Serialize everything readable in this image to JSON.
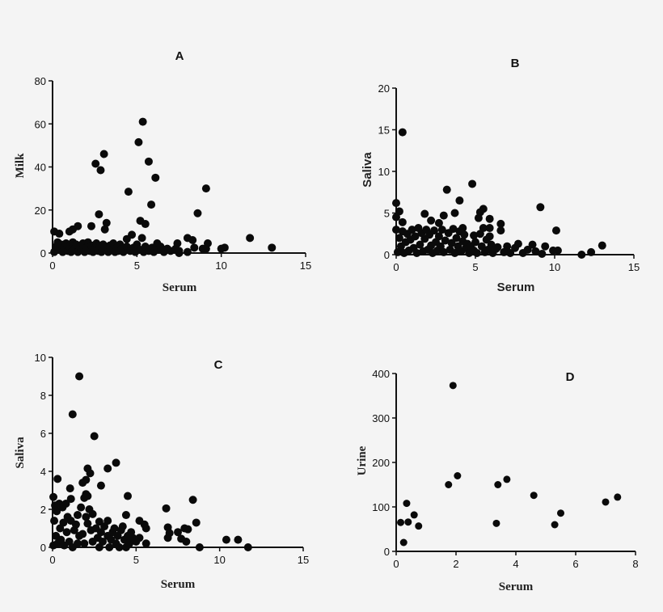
{
  "chart_data": [
    {
      "type": "scatter",
      "title": "A",
      "xlabel": "Serum",
      "ylabel": "Milk",
      "xlim": [
        0,
        15
      ],
      "ylim": [
        0,
        80
      ],
      "xticks": [
        0,
        5,
        10,
        15
      ],
      "yticks": [
        0,
        20,
        40,
        60,
        80
      ],
      "grid": false,
      "points": [
        [
          5.35,
          61
        ],
        [
          5.1,
          51.5
        ],
        [
          3.05,
          46
        ],
        [
          2.55,
          41.5
        ],
        [
          2.85,
          38.5
        ],
        [
          5.7,
          42.5
        ],
        [
          6.1,
          35
        ],
        [
          9.1,
          30
        ],
        [
          4.5,
          28.5
        ],
        [
          5.85,
          22.5
        ],
        [
          2.75,
          18
        ],
        [
          8.6,
          18.5
        ],
        [
          5.2,
          15
        ],
        [
          5.5,
          13.5
        ],
        [
          3.2,
          14
        ],
        [
          3.1,
          11
        ],
        [
          2.3,
          12.5
        ],
        [
          1.5,
          12.5
        ],
        [
          1.2,
          11
        ],
        [
          1.0,
          10
        ],
        [
          0.1,
          10
        ],
        [
          0.4,
          9
        ],
        [
          4.7,
          8.5
        ],
        [
          4.4,
          6.5
        ],
        [
          5.3,
          7
        ],
        [
          8.0,
          7
        ],
        [
          8.3,
          6
        ],
        [
          11.7,
          7
        ],
        [
          13.0,
          2.5
        ],
        [
          9.2,
          4.5
        ],
        [
          7.4,
          4.5
        ],
        [
          6.2,
          4.5
        ],
        [
          8.4,
          2.5
        ],
        [
          8.9,
          2
        ],
        [
          9.1,
          2
        ],
        [
          10.0,
          2
        ],
        [
          10.2,
          2.5
        ],
        [
          7.5,
          1
        ],
        [
          8.0,
          0.5
        ],
        [
          0.1,
          0.5
        ],
        [
          0.2,
          3
        ],
        [
          0.3,
          5
        ],
        [
          0.4,
          1.5
        ],
        [
          0.5,
          4
        ],
        [
          0.6,
          0.5
        ],
        [
          0.7,
          2.5
        ],
        [
          0.8,
          4.5
        ],
        [
          0.9,
          1
        ],
        [
          1.0,
          3
        ],
        [
          1.1,
          0.5
        ],
        [
          1.2,
          5
        ],
        [
          1.3,
          2
        ],
        [
          1.4,
          4
        ],
        [
          1.5,
          0.5
        ],
        [
          1.6,
          3
        ],
        [
          1.7,
          1.5
        ],
        [
          1.8,
          4.5
        ],
        [
          1.9,
          0.5
        ],
        [
          2.0,
          2.5
        ],
        [
          2.1,
          5
        ],
        [
          2.2,
          1
        ],
        [
          2.3,
          3.5
        ],
        [
          2.4,
          0.5
        ],
        [
          2.5,
          2
        ],
        [
          2.6,
          4.5
        ],
        [
          2.7,
          1
        ],
        [
          2.8,
          3
        ],
        [
          2.9,
          0.5
        ],
        [
          3.0,
          4
        ],
        [
          3.1,
          2
        ],
        [
          3.3,
          0.5
        ],
        [
          3.4,
          3.5
        ],
        [
          3.5,
          1.5
        ],
        [
          3.6,
          4.5
        ],
        [
          3.7,
          0.5
        ],
        [
          3.8,
          2.5
        ],
        [
          3.9,
          1
        ],
        [
          4.0,
          4
        ],
        [
          4.1,
          2
        ],
        [
          4.2,
          0.5
        ],
        [
          4.4,
          3
        ],
        [
          4.6,
          1
        ],
        [
          4.8,
          2.5
        ],
        [
          4.9,
          0.5
        ],
        [
          5.0,
          4
        ],
        [
          5.2,
          1.5
        ],
        [
          5.4,
          0.5
        ],
        [
          5.5,
          3
        ],
        [
          5.7,
          1
        ],
        [
          5.9,
          2.5
        ],
        [
          6.0,
          0.5
        ],
        [
          6.2,
          1.5
        ],
        [
          6.4,
          3
        ],
        [
          6.6,
          0.5
        ],
        [
          6.8,
          2
        ],
        [
          7.0,
          1
        ],
        [
          7.3,
          2
        ],
        [
          7.5,
          0
        ]
      ]
    },
    {
      "type": "scatter",
      "title": "B",
      "xlabel": "Serum",
      "ylabel": "Saliva",
      "xlim": [
        0,
        15
      ],
      "ylim": [
        0,
        20
      ],
      "xticks": [
        0,
        5,
        10,
        15
      ],
      "yticks": [
        0,
        5,
        10,
        15,
        20
      ],
      "grid": false,
      "points": [
        [
          0.4,
          14.7
        ],
        [
          4.8,
          8.5
        ],
        [
          3.2,
          7.8
        ],
        [
          4.0,
          6.5
        ],
        [
          9.1,
          5.7
        ],
        [
          0.0,
          6.2
        ],
        [
          0.2,
          5.2
        ],
        [
          3.7,
          5.0
        ],
        [
          1.8,
          4.9
        ],
        [
          3.0,
          4.7
        ],
        [
          5.3,
          5.1
        ],
        [
          5.5,
          5.5
        ],
        [
          5.2,
          4.4
        ],
        [
          5.9,
          4.3
        ],
        [
          6.6,
          3.7
        ],
        [
          6.6,
          2.9
        ],
        [
          10.1,
          2.9
        ],
        [
          13.0,
          1.1
        ],
        [
          12.3,
          0.3
        ],
        [
          11.7,
          0
        ],
        [
          10.2,
          0.5
        ],
        [
          9.9,
          0.5
        ],
        [
          9.4,
          1.0
        ],
        [
          8.6,
          1.2
        ],
        [
          7.7,
          1.3
        ],
        [
          6.4,
          0.9
        ],
        [
          2.2,
          4.1
        ],
        [
          2.7,
          3.8
        ],
        [
          0.4,
          3.9
        ],
        [
          4.2,
          3.2
        ],
        [
          5.5,
          3.2
        ],
        [
          5.9,
          3.2
        ],
        [
          5.9,
          2.2
        ],
        [
          4.9,
          2.3
        ],
        [
          0.0,
          4.5
        ],
        [
          0.0,
          3.0
        ],
        [
          0.1,
          0.3
        ],
        [
          0.2,
          2.0
        ],
        [
          0.3,
          1.0
        ],
        [
          0.4,
          2.8
        ],
        [
          0.5,
          0.2
        ],
        [
          0.6,
          1.5
        ],
        [
          0.7,
          2.5
        ],
        [
          0.8,
          0.5
        ],
        [
          0.9,
          1.8
        ],
        [
          1.0,
          3.0
        ],
        [
          1.1,
          0.8
        ],
        [
          1.2,
          2.2
        ],
        [
          1.3,
          0.2
        ],
        [
          1.4,
          3.2
        ],
        [
          1.5,
          1.2
        ],
        [
          1.6,
          2.6
        ],
        [
          1.7,
          0.4
        ],
        [
          1.8,
          1.9
        ],
        [
          1.9,
          3.0
        ],
        [
          2.0,
          0.6
        ],
        [
          2.1,
          2.4
        ],
        [
          2.2,
          1.1
        ],
        [
          2.3,
          0.2
        ],
        [
          2.4,
          2.9
        ],
        [
          2.5,
          1.5
        ],
        [
          2.6,
          0.5
        ],
        [
          2.7,
          2.2
        ],
        [
          2.8,
          1.0
        ],
        [
          2.9,
          3.0
        ],
        [
          3.0,
          0.3
        ],
        [
          3.1,
          1.7
        ],
        [
          3.3,
          2.6
        ],
        [
          3.4,
          0.6
        ],
        [
          3.5,
          1.4
        ],
        [
          3.6,
          3.1
        ],
        [
          3.7,
          0.2
        ],
        [
          3.8,
          2.0
        ],
        [
          3.9,
          1.0
        ],
        [
          4.0,
          2.8
        ],
        [
          4.1,
          0.4
        ],
        [
          4.2,
          1.6
        ],
        [
          4.3,
          2.4
        ],
        [
          4.4,
          0.8
        ],
        [
          4.5,
          1.3
        ],
        [
          4.6,
          0.2
        ],
        [
          4.7,
          1.0
        ],
        [
          4.9,
          0.5
        ],
        [
          5.0,
          1.5
        ],
        [
          5.1,
          0.2
        ],
        [
          5.3,
          2.5
        ],
        [
          5.4,
          1.0
        ],
        [
          5.6,
          0.3
        ],
        [
          5.7,
          1.8
        ],
        [
          5.8,
          0.6
        ],
        [
          6.0,
          1.2
        ],
        [
          6.1,
          0.2
        ],
        [
          6.3,
          0.7
        ],
        [
          6.8,
          0.3
        ],
        [
          7.0,
          1.0
        ],
        [
          7.2,
          0.2
        ],
        [
          7.5,
          0.8
        ],
        [
          8.0,
          0.2
        ],
        [
          8.3,
          0.6
        ],
        [
          8.8,
          0.4
        ],
        [
          9.2,
          0.1
        ]
      ]
    },
    {
      "type": "scatter",
      "title": "C",
      "xlabel": "Serum",
      "ylabel": "Saliva",
      "xlim": [
        0,
        15
      ],
      "ylim": [
        0,
        10
      ],
      "xticks": [
        0,
        5,
        10,
        15
      ],
      "yticks": [
        0,
        2,
        4,
        6,
        8,
        10
      ],
      "grid": false,
      "points": [
        [
          1.6,
          9.0
        ],
        [
          1.2,
          7.0
        ],
        [
          2.5,
          5.85
        ],
        [
          3.8,
          4.45
        ],
        [
          3.3,
          4.15
        ],
        [
          2.1,
          4.15
        ],
        [
          2.25,
          3.9
        ],
        [
          1.8,
          3.4
        ],
        [
          2.0,
          3.55
        ],
        [
          2.9,
          3.25
        ],
        [
          0.3,
          3.6
        ],
        [
          1.05,
          3.1
        ],
        [
          1.1,
          2.55
        ],
        [
          0.05,
          2.65
        ],
        [
          4.5,
          2.7
        ],
        [
          8.4,
          2.5
        ],
        [
          6.8,
          2.05
        ],
        [
          4.4,
          1.7
        ],
        [
          8.6,
          1.3
        ],
        [
          7.9,
          1.0
        ],
        [
          8.1,
          0.95
        ],
        [
          6.9,
          1.05
        ],
        [
          7.0,
          0.75
        ],
        [
          7.5,
          0.8
        ],
        [
          7.7,
          0.45
        ],
        [
          8.0,
          0.3
        ],
        [
          8.8,
          0.0
        ],
        [
          10.4,
          0.4
        ],
        [
          11.1,
          0.4
        ],
        [
          11.7,
          0.0
        ],
        [
          6.9,
          0.5
        ],
        [
          5.2,
          1.4
        ],
        [
          5.5,
          1.2
        ],
        [
          5.6,
          1.0
        ],
        [
          5.6,
          0.2
        ],
        [
          2.0,
          2.8
        ],
        [
          1.9,
          2.6
        ],
        [
          2.1,
          2.7
        ],
        [
          1.7,
          2.1
        ],
        [
          1.5,
          1.7
        ],
        [
          2.2,
          2.0
        ],
        [
          2.4,
          1.75
        ],
        [
          2.1,
          1.25
        ],
        [
          3.3,
          1.4
        ],
        [
          2.8,
          1.35
        ],
        [
          3.7,
          1.0
        ],
        [
          4.2,
          1.1
        ],
        [
          4.7,
          0.8
        ],
        [
          5.2,
          0.5
        ],
        [
          0.05,
          0.1
        ],
        [
          0.1,
          1.4
        ],
        [
          0.15,
          2.2
        ],
        [
          0.2,
          0.6
        ],
        [
          0.25,
          1.9
        ],
        [
          0.3,
          0.2
        ],
        [
          0.4,
          2.3
        ],
        [
          0.45,
          1.0
        ],
        [
          0.5,
          0.4
        ],
        [
          0.6,
          2.1
        ],
        [
          0.65,
          1.3
        ],
        [
          0.7,
          0.1
        ],
        [
          0.8,
          2.3
        ],
        [
          0.85,
          0.8
        ],
        [
          0.9,
          1.6
        ],
        [
          1.0,
          0.3
        ],
        [
          1.1,
          1.4
        ],
        [
          1.2,
          0.0
        ],
        [
          1.3,
          0.9
        ],
        [
          1.4,
          1.2
        ],
        [
          1.5,
          0.2
        ],
        [
          1.6,
          0.6
        ],
        [
          1.8,
          0.7
        ],
        [
          1.9,
          0.2
        ],
        [
          2.0,
          1.6
        ],
        [
          2.3,
          0.9
        ],
        [
          2.4,
          0.3
        ],
        [
          2.6,
          1.0
        ],
        [
          2.7,
          0.5
        ],
        [
          2.8,
          0.0
        ],
        [
          2.9,
          0.8
        ],
        [
          3.0,
          0.3
        ],
        [
          3.1,
          1.1
        ],
        [
          3.3,
          0.6
        ],
        [
          3.4,
          0.0
        ],
        [
          3.5,
          0.4
        ],
        [
          3.6,
          0.8
        ],
        [
          3.8,
          0.2
        ],
        [
          3.9,
          0.6
        ],
        [
          4.0,
          0.0
        ],
        [
          4.1,
          0.9
        ],
        [
          4.3,
          0.4
        ],
        [
          4.4,
          0.0
        ],
        [
          4.5,
          0.6
        ],
        [
          4.6,
          0.2
        ],
        [
          4.8,
          0.5
        ],
        [
          5.0,
          0.3
        ]
      ]
    },
    {
      "type": "scatter",
      "title": "D",
      "xlabel": "Serum",
      "ylabel": "Urine",
      "xlim": [
        0,
        8
      ],
      "ylim": [
        0,
        400
      ],
      "xticks": [
        0,
        2,
        4,
        6,
        8
      ],
      "yticks": [
        0,
        100,
        200,
        300,
        400
      ],
      "grid": false,
      "points": [
        [
          0.15,
          65
        ],
        [
          0.25,
          20
        ],
        [
          0.35,
          108
        ],
        [
          0.4,
          66
        ],
        [
          0.6,
          82
        ],
        [
          0.75,
          57
        ],
        [
          1.75,
          150
        ],
        [
          1.9,
          373
        ],
        [
          2.05,
          170
        ],
        [
          3.35,
          63
        ],
        [
          3.4,
          150
        ],
        [
          3.7,
          162
        ],
        [
          4.6,
          126
        ],
        [
          5.3,
          60
        ],
        [
          5.5,
          86
        ],
        [
          7.0,
          111
        ],
        [
          7.4,
          122
        ]
      ]
    }
  ],
  "colors": {
    "background": "#f4f4f4",
    "marker": "#0a0a0a",
    "axis": "#111111"
  }
}
